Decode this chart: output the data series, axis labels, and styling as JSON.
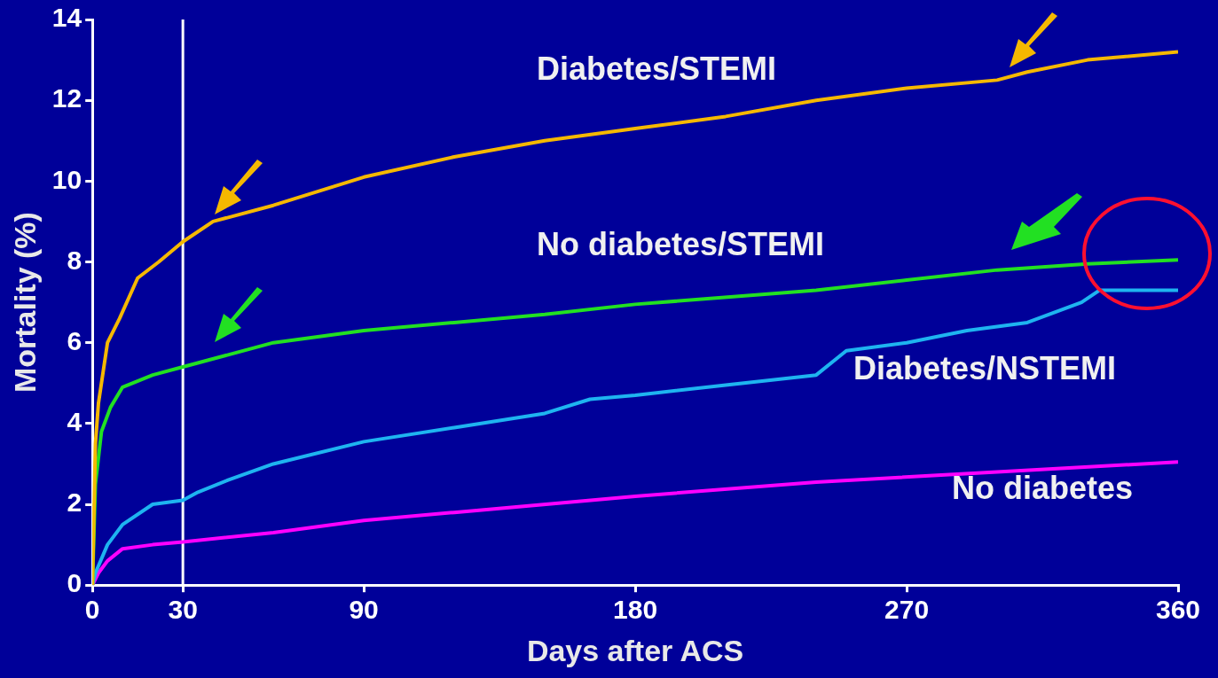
{
  "chart_data": {
    "type": "line",
    "xlabel": "Days after ACS",
    "ylabel": "Mortality (%)",
    "xlim": [
      0,
      360
    ],
    "xticks": [
      0,
      30,
      90,
      180,
      270,
      360
    ],
    "ylim": [
      0,
      14
    ],
    "yticks": [
      0,
      2,
      4,
      6,
      8,
      10,
      12,
      14
    ],
    "grid": false,
    "legend": false,
    "marker": "none",
    "line_style": "solid",
    "ref_lines": [
      {
        "axis": "x",
        "value": 30,
        "color": "#ffffff"
      }
    ],
    "series": [
      {
        "name": "Diabetes/STEMI",
        "color": "#f5b800",
        "x": [
          0,
          1,
          2,
          5,
          9,
          15,
          22,
          30,
          40,
          60,
          90,
          120,
          150,
          180,
          210,
          240,
          270,
          300,
          310,
          330,
          360
        ],
        "values": [
          0,
          3.5,
          4.5,
          6.0,
          6.6,
          7.6,
          8.0,
          8.5,
          9.0,
          9.4,
          10.1,
          10.6,
          11.0,
          11.3,
          11.6,
          12.0,
          12.3,
          12.5,
          12.7,
          13.0,
          13.2
        ]
      },
      {
        "name": "No diabetes/STEMI",
        "color": "#22e022",
        "x": [
          0,
          1,
          3,
          6,
          10,
          20,
          30,
          45,
          60,
          90,
          120,
          150,
          180,
          240,
          270,
          300,
          330,
          360
        ],
        "values": [
          0,
          2.5,
          3.8,
          4.4,
          4.9,
          5.2,
          5.4,
          5.7,
          6.0,
          6.3,
          6.5,
          6.7,
          6.95,
          7.3,
          7.55,
          7.8,
          7.95,
          8.05
        ]
      },
      {
        "name": "Diabetes/NSTEMI",
        "color": "#1eb4f0",
        "x": [
          0,
          1,
          5,
          10,
          20,
          30,
          35,
          45,
          60,
          90,
          120,
          150,
          165,
          180,
          210,
          240,
          250,
          270,
          290,
          310,
          328,
          334,
          360
        ],
        "values": [
          0,
          0.3,
          1.0,
          1.5,
          2.0,
          2.1,
          2.3,
          2.6,
          3.0,
          3.55,
          3.9,
          4.25,
          4.6,
          4.7,
          4.95,
          5.2,
          5.8,
          6.0,
          6.3,
          6.5,
          7.0,
          7.3,
          7.3
        ]
      },
      {
        "name": "No diabetes",
        "color": "#ff00ff",
        "x": [
          0,
          2,
          5,
          10,
          20,
          30,
          60,
          90,
          120,
          180,
          240,
          300,
          360
        ],
        "values": [
          0,
          0.3,
          0.6,
          0.9,
          1.0,
          1.07,
          1.3,
          1.6,
          1.8,
          2.2,
          2.55,
          2.8,
          3.05
        ]
      }
    ]
  }
}
